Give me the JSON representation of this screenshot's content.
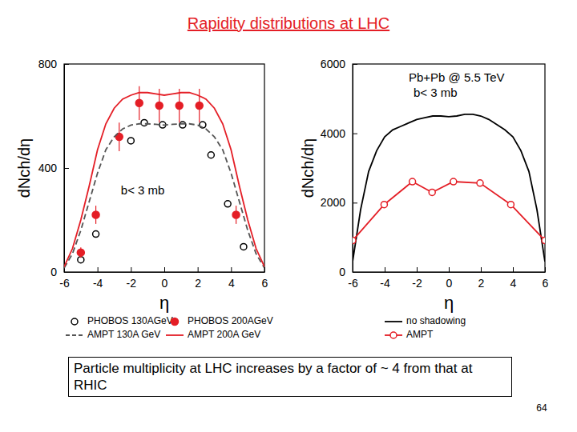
{
  "title": "Rapidity distributions at LHC",
  "caption": "Particle multiplicity at LHC increases by a factor of ~ 4 from that at RHIC",
  "page": "64",
  "chart_data": [
    {
      "type": "line",
      "annotations": [
        "b< 3 mb"
      ],
      "x_label": "η",
      "y_label": "dNch/dη",
      "xlim": [
        -6,
        6
      ],
      "xticks": [
        -6,
        -4,
        -2,
        0,
        2,
        4,
        6
      ],
      "ylim": [
        0,
        800
      ],
      "yticks": [
        0,
        400,
        800
      ],
      "legend": "bottom",
      "series": [
        {
          "name": "PHOBOS 130AGeV",
          "type": "scatter",
          "marker": "open-circle",
          "color": "#000000",
          "x": [
            -5.0,
            -4.1,
            -2.0,
            -1.2,
            -0.1,
            1.1,
            2.3,
            2.8,
            3.8,
            4.75
          ],
          "values": [
            47,
            146,
            505,
            574,
            566,
            566,
            566,
            450,
            262,
            97
          ]
        },
        {
          "name": "PHOBOS 200AGeV",
          "type": "scatter",
          "marker": "filled-circle",
          "color": "#e41e26",
          "x": [
            -5.0,
            -4.1,
            -2.7,
            -1.5,
            -0.3,
            0.9,
            2.1,
            4.3
          ],
          "values": [
            75,
            220,
            520,
            650,
            640,
            640,
            640,
            220
          ],
          "errors": [
            20,
            35,
            55,
            65,
            65,
            65,
            65,
            35
          ]
        },
        {
          "name": "AMPT 130A GeV",
          "type": "line",
          "line_style": "dashed",
          "color": "#555555",
          "x": [
            -6,
            -5.5,
            -5,
            -4.5,
            -4,
            -3.5,
            -3,
            -2.5,
            -2,
            -1.5,
            -1,
            -0.5,
            0,
            0.5,
            1,
            1.5,
            2,
            2.5,
            3,
            3.5,
            4,
            4.5,
            5,
            5.5,
            6
          ],
          "values": [
            15,
            70,
            160,
            270,
            380,
            470,
            520,
            550,
            565,
            570,
            570,
            568,
            565,
            568,
            570,
            570,
            565,
            550,
            520,
            470,
            380,
            270,
            160,
            70,
            15
          ]
        },
        {
          "name": "AMPT 200A GeV",
          "type": "line",
          "line_style": "solid",
          "color": "#e41e26",
          "x": [
            -6,
            -5.5,
            -5,
            -4.5,
            -4,
            -3.5,
            -3,
            -2.5,
            -2,
            -1.5,
            -1,
            -0.5,
            0,
            0.5,
            1,
            1.5,
            2,
            2.5,
            3,
            3.5,
            4,
            4.5,
            5,
            5.5,
            6
          ],
          "values": [
            20,
            90,
            200,
            330,
            470,
            570,
            630,
            665,
            680,
            690,
            690,
            685,
            680,
            685,
            690,
            690,
            680,
            665,
            630,
            570,
            470,
            330,
            200,
            90,
            20
          ]
        }
      ]
    },
    {
      "type": "line",
      "title": "Pb+Pb @ 5.5 TeV",
      "annotations": [
        "b< 3 mb"
      ],
      "x_label": "η",
      "y_label": "dNch/dη",
      "xlim": [
        -6,
        6
      ],
      "xticks": [
        -6,
        -4,
        -2,
        0,
        2,
        4,
        6
      ],
      "ylim": [
        0,
        6000
      ],
      "yticks": [
        0,
        2000,
        4000,
        6000
      ],
      "legend": "bottom",
      "series": [
        {
          "name": "no shadowing",
          "type": "line",
          "line_style": "solid",
          "color": "#000000",
          "x": [
            -6,
            -5.5,
            -5,
            -4.5,
            -4,
            -3.5,
            -3,
            -2.5,
            -2,
            -1.5,
            -1,
            -0.5,
            0,
            0.5,
            1,
            1.5,
            2,
            2.5,
            3,
            3.5,
            4,
            4.5,
            5,
            5.5,
            6
          ],
          "values": [
            300,
            1800,
            2900,
            3500,
            3900,
            4100,
            4200,
            4300,
            4400,
            4450,
            4500,
            4500,
            4480,
            4500,
            4550,
            4550,
            4500,
            4400,
            4250,
            4100,
            3900,
            3500,
            2900,
            1800,
            300
          ]
        },
        {
          "name": "AMPT",
          "type": "line",
          "line_style": "solid",
          "marker": "open-circle",
          "color": "#e41e26",
          "x": [
            -6,
            -4.03,
            -2.27,
            -1.04,
            0.29,
            1.95,
            3.87,
            6
          ],
          "values": [
            910,
            1945,
            2607,
            2297,
            2607,
            2566,
            1945,
            910
          ]
        }
      ]
    }
  ]
}
